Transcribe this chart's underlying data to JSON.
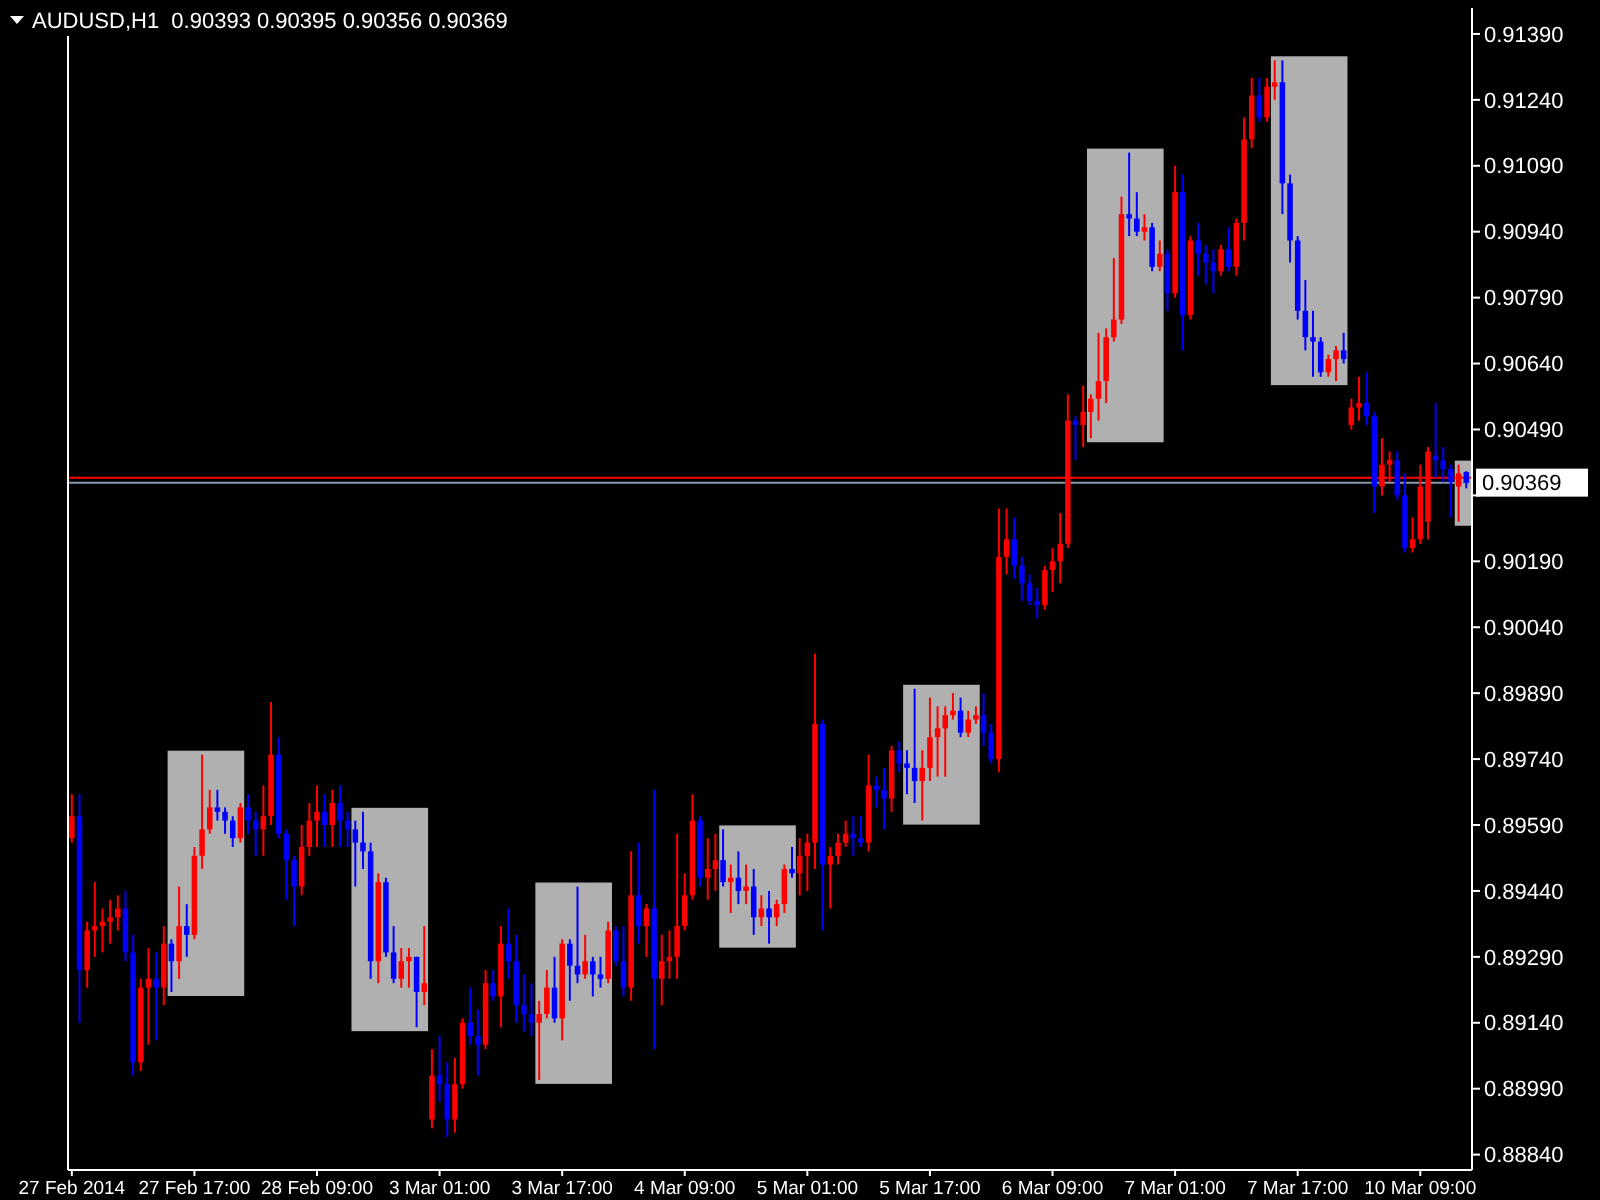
{
  "chart_data": {
    "type": "candlestick",
    "title": "AUDUSD,H1  0.90393 0.90395 0.90356 0.90369",
    "categories": [
      "27 Feb 2014",
      null,
      null,
      null,
      null,
      null,
      null,
      null,
      null,
      null,
      null,
      null,
      null,
      null,
      null,
      null,
      "27 Feb 17:00",
      null,
      null,
      null,
      null,
      null,
      null,
      null,
      null,
      null,
      null,
      null,
      null,
      null,
      null,
      null,
      "28 Feb 09:00",
      null,
      null,
      null,
      null,
      null,
      null,
      null,
      null,
      null,
      null,
      null,
      null,
      null,
      null,
      null,
      "3 Mar 01:00",
      null,
      null,
      null,
      null,
      null,
      null,
      null,
      null,
      null,
      null,
      null,
      null,
      null,
      null,
      null,
      "3 Mar 17:00",
      null,
      null,
      null,
      null,
      null,
      null,
      null,
      null,
      null,
      null,
      null,
      null,
      null,
      null,
      null,
      "4 Mar 09:00",
      null,
      null,
      null,
      null,
      null,
      null,
      null,
      null,
      null,
      null,
      null,
      null,
      null,
      null,
      null,
      "5 Mar 01:00",
      null,
      null,
      null,
      null,
      null,
      null,
      null,
      null,
      null,
      null,
      null,
      null,
      null,
      null,
      null,
      "5 Mar 17:00",
      null,
      null,
      null,
      null,
      null,
      null,
      null,
      null,
      null,
      null,
      null,
      null,
      null,
      null,
      null,
      "6 Mar 09:00",
      null,
      null,
      null,
      null,
      null,
      null,
      null,
      null,
      null,
      null,
      null,
      null,
      null,
      null,
      null,
      "7 Mar 01:00",
      null,
      null,
      null,
      null,
      null,
      null,
      null,
      null,
      null,
      null,
      null,
      null,
      null,
      null,
      null,
      "7 Mar 17:00",
      null,
      null,
      null,
      null,
      null,
      null,
      null,
      null,
      null,
      null,
      null,
      null,
      null,
      null,
      null,
      "10 Mar 09:00",
      null,
      null,
      null,
      null,
      null,
      null
    ],
    "ohlc": [
      [
        0.8956,
        0.8966,
        0.8955,
        0.8961
      ],
      [
        0.8961,
        0.8966,
        0.8914,
        0.8926
      ],
      [
        0.8926,
        0.8937,
        0.8922,
        0.8935
      ],
      [
        0.8935,
        0.8946,
        0.8929,
        0.8936
      ],
      [
        0.8936,
        0.894,
        0.893,
        0.8937
      ],
      [
        0.8937,
        0.8942,
        0.8932,
        0.8938
      ],
      [
        0.8938,
        0.8943,
        0.8935,
        0.894
      ],
      [
        0.894,
        0.8944,
        0.8928,
        0.893
      ],
      [
        0.893,
        0.8934,
        0.8902,
        0.8905
      ],
      [
        0.8905,
        0.8924,
        0.8903,
        0.8922
      ],
      [
        0.8922,
        0.8931,
        0.8909,
        0.8924
      ],
      [
        0.8924,
        0.893,
        0.891,
        0.8922
      ],
      [
        0.8922,
        0.8936,
        0.8918,
        0.8932
      ],
      [
        0.8932,
        0.8933,
        0.8921,
        0.8928
      ],
      [
        0.8928,
        0.8945,
        0.8924,
        0.8936
      ],
      [
        0.8936,
        0.8941,
        0.8929,
        0.8934
      ],
      [
        0.8934,
        0.8954,
        0.8933,
        0.8952
      ],
      [
        0.8952,
        0.8975,
        0.8949,
        0.8958
      ],
      [
        0.8958,
        0.8967,
        0.8957,
        0.8963
      ],
      [
        0.8963,
        0.8967,
        0.896,
        0.8962
      ],
      [
        0.8962,
        0.8963,
        0.8957,
        0.896
      ],
      [
        0.896,
        0.8961,
        0.8954,
        0.8956
      ],
      [
        0.8956,
        0.8964,
        0.8955,
        0.8963
      ],
      [
        0.8963,
        0.8966,
        0.8957,
        0.896
      ],
      [
        0.896,
        0.8962,
        0.8952,
        0.8958
      ],
      [
        0.8958,
        0.8968,
        0.8952,
        0.8961
      ],
      [
        0.8961,
        0.8987,
        0.8959,
        0.8975
      ],
      [
        0.8975,
        0.8979,
        0.8956,
        0.8957
      ],
      [
        0.8957,
        0.8958,
        0.8942,
        0.8951
      ],
      [
        0.8951,
        0.8952,
        0.8936,
        0.8945
      ],
      [
        0.8945,
        0.8959,
        0.8943,
        0.8954
      ],
      [
        0.8954,
        0.8964,
        0.8952,
        0.896
      ],
      [
        0.896,
        0.8968,
        0.8954,
        0.8962
      ],
      [
        0.8962,
        0.8966,
        0.8954,
        0.8959
      ],
      [
        0.8959,
        0.8967,
        0.8954,
        0.8964
      ],
      [
        0.8964,
        0.8968,
        0.8954,
        0.896
      ],
      [
        0.896,
        0.8962,
        0.8954,
        0.8958
      ],
      [
        0.8958,
        0.896,
        0.8945,
        0.8955
      ],
      [
        0.8955,
        0.8962,
        0.8949,
        0.8953
      ],
      [
        0.8953,
        0.8955,
        0.8924,
        0.8928
      ],
      [
        0.8928,
        0.8948,
        0.8923,
        0.8946
      ],
      [
        0.8946,
        0.8947,
        0.8929,
        0.893
      ],
      [
        0.893,
        0.8936,
        0.8923,
        0.8924
      ],
      [
        0.8924,
        0.8931,
        0.8922,
        0.8928
      ],
      [
        0.8928,
        0.8931,
        0.8922,
        0.8929
      ],
      [
        0.8929,
        0.8929,
        0.8913,
        0.8921
      ],
      [
        0.8921,
        0.8936,
        0.8918,
        0.8923
      ],
      [
        0.8892,
        0.8908,
        0.889,
        0.8902
      ],
      [
        0.8902,
        0.8911,
        0.8896,
        0.89
      ],
      [
        0.89,
        0.8905,
        0.8888,
        0.8892
      ],
      [
        0.8892,
        0.8906,
        0.8889,
        0.89
      ],
      [
        0.89,
        0.8915,
        0.8899,
        0.8914
      ],
      [
        0.8914,
        0.8922,
        0.8909,
        0.8911
      ],
      [
        0.8911,
        0.8917,
        0.8902,
        0.8909
      ],
      [
        0.8909,
        0.8926,
        0.8908,
        0.8923
      ],
      [
        0.8923,
        0.8926,
        0.8919,
        0.892
      ],
      [
        0.892,
        0.8936,
        0.8913,
        0.8932
      ],
      [
        0.8932,
        0.894,
        0.8924,
        0.8928
      ],
      [
        0.8928,
        0.8934,
        0.8914,
        0.8918
      ],
      [
        0.8918,
        0.8925,
        0.8912,
        0.8916
      ],
      [
        0.8916,
        0.8923,
        0.8911,
        0.8914
      ],
      [
        0.8914,
        0.8919,
        0.8901,
        0.8916
      ],
      [
        0.8916,
        0.8926,
        0.8915,
        0.8922
      ],
      [
        0.8922,
        0.8929,
        0.8914,
        0.8915
      ],
      [
        0.8915,
        0.8933,
        0.891,
        0.8932
      ],
      [
        0.8932,
        0.8933,
        0.8919,
        0.8927
      ],
      [
        0.8927,
        0.8945,
        0.8923,
        0.8925
      ],
      [
        0.8925,
        0.8934,
        0.8924,
        0.8928
      ],
      [
        0.8928,
        0.8929,
        0.892,
        0.8925
      ],
      [
        0.8925,
        0.8929,
        0.8922,
        0.8924
      ],
      [
        0.8924,
        0.8937,
        0.8923,
        0.8935
      ],
      [
        0.8935,
        0.8936,
        0.8927,
        0.8928
      ],
      [
        0.8928,
        0.8936,
        0.892,
        0.8922
      ],
      [
        0.8922,
        0.8953,
        0.8919,
        0.8943
      ],
      [
        0.8943,
        0.8955,
        0.8932,
        0.8936
      ],
      [
        0.8936,
        0.8941,
        0.8929,
        0.894
      ],
      [
        0.894,
        0.8967,
        0.8908,
        0.8924
      ],
      [
        0.8924,
        0.8934,
        0.8918,
        0.8928
      ],
      [
        0.8928,
        0.8935,
        0.8924,
        0.8929
      ],
      [
        0.8929,
        0.8957,
        0.8924,
        0.8936
      ],
      [
        0.8936,
        0.8948,
        0.8935,
        0.8943
      ],
      [
        0.8943,
        0.8966,
        0.8942,
        0.896
      ],
      [
        0.896,
        0.8961,
        0.8945,
        0.8947
      ],
      [
        0.8947,
        0.8956,
        0.8942,
        0.8949
      ],
      [
        0.8949,
        0.8957,
        0.8944,
        0.8951
      ],
      [
        0.8951,
        0.8958,
        0.8945,
        0.8946
      ],
      [
        0.8946,
        0.895,
        0.8939,
        0.8947
      ],
      [
        0.8947,
        0.8953,
        0.8941,
        0.8944
      ],
      [
        0.8944,
        0.895,
        0.8941,
        0.8945
      ],
      [
        0.8945,
        0.8949,
        0.8934,
        0.8938
      ],
      [
        0.8938,
        0.8943,
        0.8936,
        0.894
      ],
      [
        0.894,
        0.8944,
        0.8932,
        0.8938
      ],
      [
        0.8938,
        0.8942,
        0.8936,
        0.8941
      ],
      [
        0.8941,
        0.895,
        0.8939,
        0.8949
      ],
      [
        0.8949,
        0.8954,
        0.8947,
        0.8948
      ],
      [
        0.8948,
        0.8956,
        0.8943,
        0.8952
      ],
      [
        0.8952,
        0.8957,
        0.8944,
        0.8955
      ],
      [
        0.8955,
        0.8998,
        0.8949,
        0.8982
      ],
      [
        0.8982,
        0.8983,
        0.8935,
        0.895
      ],
      [
        0.895,
        0.8954,
        0.894,
        0.8952
      ],
      [
        0.8952,
        0.8957,
        0.895,
        0.8955
      ],
      [
        0.8955,
        0.896,
        0.8954,
        0.8957
      ],
      [
        0.8957,
        0.8961,
        0.8952,
        0.8956
      ],
      [
        0.8956,
        0.8961,
        0.8954,
        0.8955
      ],
      [
        0.8955,
        0.8975,
        0.8953,
        0.8968
      ],
      [
        0.8968,
        0.897,
        0.8963,
        0.8967
      ],
      [
        0.8967,
        0.8972,
        0.8958,
        0.8965
      ],
      [
        0.8965,
        0.8977,
        0.8962,
        0.8976
      ],
      [
        0.8976,
        0.8978,
        0.8971,
        0.8973
      ],
      [
        0.8973,
        0.8976,
        0.8966,
        0.8972
      ],
      [
        0.8972,
        0.899,
        0.8964,
        0.8969
      ],
      [
        0.8969,
        0.8976,
        0.896,
        0.8972
      ],
      [
        0.8972,
        0.8988,
        0.8969,
        0.8979
      ],
      [
        0.8979,
        0.8986,
        0.897,
        0.8981
      ],
      [
        0.8981,
        0.8986,
        0.897,
        0.8984
      ],
      [
        0.8984,
        0.8989,
        0.8983,
        0.8985
      ],
      [
        0.8985,
        0.8988,
        0.8979,
        0.898
      ],
      [
        0.898,
        0.8985,
        0.8979,
        0.8983
      ],
      [
        0.8983,
        0.8986,
        0.8982,
        0.8984
      ],
      [
        0.8984,
        0.8989,
        0.8977,
        0.898
      ],
      [
        0.898,
        0.8982,
        0.8973,
        0.8974
      ],
      [
        0.8974,
        0.9031,
        0.8971,
        0.902
      ],
      [
        0.902,
        0.9031,
        0.9016,
        0.9024
      ],
      [
        0.9024,
        0.9029,
        0.9015,
        0.9018
      ],
      [
        0.9018,
        0.902,
        0.901,
        0.9014
      ],
      [
        0.9014,
        0.9016,
        0.9009,
        0.901
      ],
      [
        0.901,
        0.9013,
        0.9006,
        0.9009
      ],
      [
        0.9009,
        0.9018,
        0.9008,
        0.9017
      ],
      [
        0.9017,
        0.9022,
        0.9012,
        0.9019
      ],
      [
        0.9019,
        0.903,
        0.9014,
        0.9023
      ],
      [
        0.9023,
        0.9057,
        0.9022,
        0.9051
      ],
      [
        0.9051,
        0.9052,
        0.9042,
        0.905
      ],
      [
        0.905,
        0.9059,
        0.9045,
        0.9053
      ],
      [
        0.9053,
        0.9057,
        0.9047,
        0.9056
      ],
      [
        0.9056,
        0.9071,
        0.9051,
        0.906
      ],
      [
        0.906,
        0.9072,
        0.9055,
        0.907
      ],
      [
        0.907,
        0.9088,
        0.9069,
        0.9074
      ],
      [
        0.9074,
        0.9102,
        0.9073,
        0.9098
      ],
      [
        0.9098,
        0.9112,
        0.9093,
        0.9097
      ],
      [
        0.9097,
        0.9103,
        0.9093,
        0.9094
      ],
      [
        0.9094,
        0.9098,
        0.9092,
        0.9095
      ],
      [
        0.9095,
        0.9096,
        0.9085,
        0.9086
      ],
      [
        0.9086,
        0.9092,
        0.9085,
        0.9089
      ],
      [
        0.9089,
        0.909,
        0.9076,
        0.908
      ],
      [
        0.908,
        0.9109,
        0.9079,
        0.9103
      ],
      [
        0.9103,
        0.9107,
        0.9067,
        0.9075
      ],
      [
        0.9075,
        0.9093,
        0.9074,
        0.9092
      ],
      [
        0.9092,
        0.9096,
        0.9084,
        0.9089
      ],
      [
        0.9089,
        0.9091,
        0.9082,
        0.9087
      ],
      [
        0.9087,
        0.909,
        0.908,
        0.9085
      ],
      [
        0.9085,
        0.9091,
        0.9084,
        0.909
      ],
      [
        0.909,
        0.9095,
        0.9085,
        0.9086
      ],
      [
        0.9086,
        0.9097,
        0.9084,
        0.9096
      ],
      [
        0.9096,
        0.912,
        0.9092,
        0.9115
      ],
      [
        0.9115,
        0.9129,
        0.9113,
        0.9125
      ],
      [
        0.9125,
        0.9129,
        0.9119,
        0.912
      ],
      [
        0.912,
        0.9129,
        0.9119,
        0.9127
      ],
      [
        0.9127,
        0.9133,
        0.9124,
        0.9128
      ],
      [
        0.9128,
        0.9133,
        0.9098,
        0.9105
      ],
      [
        0.9105,
        0.9107,
        0.9087,
        0.9092
      ],
      [
        0.9092,
        0.9093,
        0.9074,
        0.9076
      ],
      [
        0.9076,
        0.9083,
        0.9067,
        0.907
      ],
      [
        0.907,
        0.9076,
        0.9061,
        0.9069
      ],
      [
        0.9069,
        0.907,
        0.9061,
        0.9062
      ],
      [
        0.9062,
        0.9066,
        0.9061,
        0.9065
      ],
      [
        0.9065,
        0.9068,
        0.906,
        0.9067
      ],
      [
        0.9067,
        0.9071,
        0.9064,
        0.9065
      ],
      [
        0.905,
        0.9056,
        0.9049,
        0.9054
      ],
      [
        0.9054,
        0.9061,
        0.9051,
        0.9055
      ],
      [
        0.9055,
        0.9062,
        0.905,
        0.9052
      ],
      [
        0.9052,
        0.9053,
        0.903,
        0.9036
      ],
      [
        0.9036,
        0.9047,
        0.9034,
        0.9041
      ],
      [
        0.9041,
        0.9044,
        0.9037,
        0.9042
      ],
      [
        0.9042,
        0.9044,
        0.9033,
        0.9034
      ],
      [
        0.9034,
        0.9039,
        0.9021,
        0.9022
      ],
      [
        0.9022,
        0.9029,
        0.9021,
        0.9024
      ],
      [
        0.9024,
        0.9041,
        0.9023,
        0.9036
      ],
      [
        0.9028,
        0.9045,
        0.9024,
        0.9044
      ],
      [
        0.9043,
        0.9055,
        0.9038,
        0.9042
      ],
      [
        0.9042,
        0.9045,
        0.9037,
        0.904
      ],
      [
        0.904,
        0.9041,
        0.9029,
        0.9037
      ],
      [
        0.9036,
        0.9041,
        0.9028,
        0.9039
      ],
      [
        0.90393,
        0.90395,
        0.90356,
        0.90369
      ]
    ],
    "colors": [
      "#ff0000",
      "#0000ff",
      "#ff0000",
      "#ff0000",
      "#ff0000",
      "#ff0000",
      "#ff0000",
      "#0000ff",
      "#0000ff",
      "#ff0000",
      "#ff0000",
      "#0000ff",
      "#ff0000",
      "#0000ff",
      "#ff0000",
      "#0000ff",
      "#ff0000",
      "#ff0000",
      "#ff0000",
      "#0000ff",
      "#0000ff",
      "#0000ff",
      "#ff0000",
      "#0000ff",
      "#0000ff",
      "#ff0000",
      "#ff0000",
      "#0000ff",
      "#0000ff",
      "#0000ff",
      "#ff0000",
      "#ff0000",
      "#ff0000",
      "#0000ff",
      "#ff0000",
      "#0000ff",
      "#0000ff",
      "#0000ff",
      "#0000ff",
      "#0000ff",
      "#ff0000",
      "#0000ff",
      "#0000ff",
      "#ff0000",
      "#ff0000",
      "#0000ff",
      "#ff0000",
      "#ff0000",
      "#0000ff",
      "#0000ff",
      "#ff0000",
      "#ff0000",
      "#0000ff",
      "#0000ff",
      "#ff0000",
      "#0000ff",
      "#ff0000",
      "#0000ff",
      "#0000ff",
      "#0000ff",
      "#0000ff",
      "#ff0000",
      "#ff0000",
      "#0000ff",
      "#ff0000",
      "#0000ff",
      "#0000ff",
      "#ff0000",
      "#0000ff",
      "#0000ff",
      "#ff0000",
      "#0000ff",
      "#0000ff",
      "#ff0000",
      "#0000ff",
      "#ff0000",
      "#0000ff",
      "#ff0000",
      "#ff0000",
      "#ff0000",
      "#ff0000",
      "#ff0000",
      "#0000ff",
      "#ff0000",
      "#ff0000",
      "#0000ff",
      "#ff0000",
      "#0000ff",
      "#ff0000",
      "#0000ff",
      "#ff0000",
      "#0000ff",
      "#ff0000",
      "#ff0000",
      "#0000ff",
      "#ff0000",
      "#ff0000",
      "#ff0000",
      "#0000ff",
      "#ff0000",
      "#ff0000",
      "#ff0000",
      "#0000ff",
      "#0000ff",
      "#ff0000",
      "#0000ff",
      "#0000ff",
      "#ff0000",
      "#0000ff",
      "#0000ff",
      "#0000ff",
      "#ff0000",
      "#ff0000",
      "#ff0000",
      "#ff0000",
      "#ff0000",
      "#0000ff",
      "#ff0000",
      "#ff0000",
      "#0000ff",
      "#0000ff",
      "#ff0000",
      "#ff0000",
      "#0000ff",
      "#0000ff",
      "#0000ff",
      "#0000ff",
      "#ff0000",
      "#ff0000",
      "#ff0000",
      "#ff0000",
      "#0000ff",
      "#ff0000",
      "#ff0000",
      "#ff0000",
      "#ff0000",
      "#ff0000",
      "#ff0000",
      "#0000ff",
      "#0000ff",
      "#ff0000",
      "#0000ff",
      "#ff0000",
      "#0000ff",
      "#ff0000",
      "#0000ff",
      "#ff0000",
      "#0000ff",
      "#0000ff",
      "#0000ff",
      "#ff0000",
      "#0000ff",
      "#ff0000",
      "#ff0000",
      "#ff0000",
      "#0000ff",
      "#ff0000",
      "#ff0000",
      "#0000ff",
      "#0000ff",
      "#0000ff",
      "#0000ff",
      "#0000ff",
      "#0000ff",
      "#ff0000",
      "#ff0000",
      "#0000ff",
      "#ff0000",
      "#ff0000",
      "#0000ff",
      "#0000ff",
      "#ff0000",
      "#ff0000",
      "#0000ff",
      "#0000ff",
      "#ff0000",
      "#ff0000",
      "#ff0000",
      "#0000ff",
      "#0000ff",
      "#0000ff",
      "#ff0000",
      "#0000ff"
    ],
    "ylim": [
      0.88805,
      0.91449
    ],
    "yticks": [
      {
        "value": 0.9139,
        "label": "0.91390"
      },
      {
        "value": 0.9124,
        "label": "0.91240"
      },
      {
        "value": 0.9109,
        "label": "0.91090"
      },
      {
        "value": 0.9094,
        "label": "0.90940"
      },
      {
        "value": 0.9079,
        "label": "0.90790"
      },
      {
        "value": 0.9064,
        "label": "0.90640"
      },
      {
        "value": 0.9049,
        "label": "0.90490"
      },
      {
        "value": 0.9034,
        "label": null
      },
      {
        "value": 0.9019,
        "label": "0.90190"
      },
      {
        "value": 0.9004,
        "label": "0.90040"
      },
      {
        "value": 0.8989,
        "label": "0.89890"
      },
      {
        "value": 0.8974,
        "label": "0.89740"
      },
      {
        "value": 0.8959,
        "label": "0.89590"
      },
      {
        "value": 0.8944,
        "label": "0.89440"
      },
      {
        "value": 0.8929,
        "label": "0.89290"
      },
      {
        "value": 0.8914,
        "label": "0.89140"
      },
      {
        "value": 0.8899,
        "label": "0.88990"
      },
      {
        "value": 0.8884,
        "label": "0.88840"
      }
    ],
    "ref_lines": [
      {
        "axis": "y",
        "value": 0.9038,
        "color": "#ff0000"
      },
      {
        "axis": "y",
        "value": 0.90369,
        "label": "0.90369",
        "color": "#8899aa"
      }
    ]
  }
}
